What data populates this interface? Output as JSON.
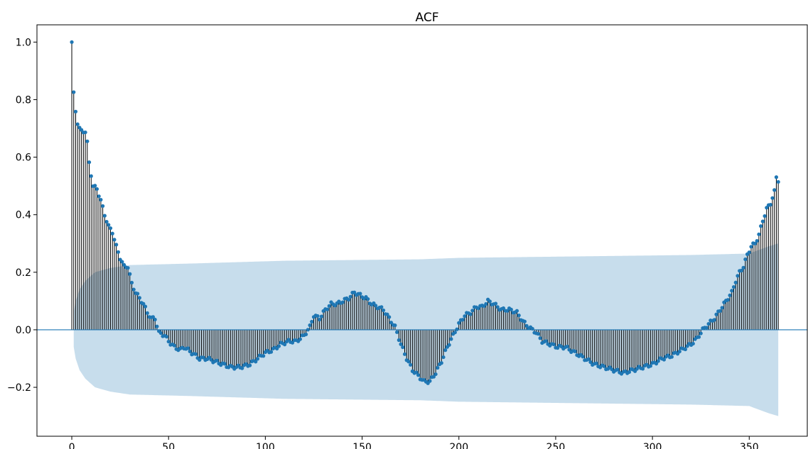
{
  "chart_data": {
    "type": "stem",
    "title": "ACF",
    "xlabel": "",
    "ylabel": "",
    "xlim": [
      -18,
      380
    ],
    "ylim": [
      -0.37,
      1.06
    ],
    "x_ticks": [
      0,
      50,
      100,
      150,
      200,
      250,
      300,
      350
    ],
    "x_tick_labels": [
      "0",
      "50",
      "100",
      "150",
      "200",
      "250",
      "300",
      "350"
    ],
    "y_ticks": [
      -0.2,
      0.0,
      0.2,
      0.4,
      0.6,
      0.8,
      1.0
    ],
    "y_tick_labels": [
      "−0.2",
      "0.0",
      "0.2",
      "0.4",
      "0.6",
      "0.8",
      "1.0"
    ],
    "grid": false,
    "colors": {
      "marker": "#1f77b4",
      "stem": "#000000",
      "baseline": "#1f77b4",
      "confidence_band": "#1f77b4",
      "confidence_alpha": 0.25
    },
    "lags": [
      0,
      365
    ],
    "acf_knots": [
      [
        0,
        1.0
      ],
      [
        1,
        0.82
      ],
      [
        2,
        0.76
      ],
      [
        3,
        0.72
      ],
      [
        4,
        0.7
      ],
      [
        5,
        0.69
      ],
      [
        7,
        0.69
      ],
      [
        8,
        0.65
      ],
      [
        9,
        0.58
      ],
      [
        10,
        0.54
      ],
      [
        11,
        0.5
      ],
      [
        13,
        0.49
      ],
      [
        15,
        0.45
      ],
      [
        17,
        0.4
      ],
      [
        19,
        0.36
      ],
      [
        21,
        0.34
      ],
      [
        23,
        0.29
      ],
      [
        25,
        0.25
      ],
      [
        27,
        0.22
      ],
      [
        29,
        0.22
      ],
      [
        30,
        0.19
      ],
      [
        31,
        0.16
      ],
      [
        33,
        0.13
      ],
      [
        35,
        0.11
      ],
      [
        37,
        0.09
      ],
      [
        39,
        0.06
      ],
      [
        41,
        0.04
      ],
      [
        43,
        0.04
      ],
      [
        45,
        -0.01
      ],
      [
        48,
        -0.02
      ],
      [
        50,
        -0.04
      ],
      [
        53,
        -0.06
      ],
      [
        56,
        -0.07
      ],
      [
        58,
        -0.06
      ],
      [
        62,
        -0.08
      ],
      [
        66,
        -0.1
      ],
      [
        70,
        -0.1
      ],
      [
        74,
        -0.11
      ],
      [
        78,
        -0.12
      ],
      [
        82,
        -0.13
      ],
      [
        87,
        -0.13
      ],
      [
        92,
        -0.12
      ],
      [
        96,
        -0.1
      ],
      [
        100,
        -0.08
      ],
      [
        104,
        -0.07
      ],
      [
        108,
        -0.05
      ],
      [
        112,
        -0.04
      ],
      [
        116,
        -0.04
      ],
      [
        120,
        -0.02
      ],
      [
        123,
        0.01
      ],
      [
        125,
        0.05
      ],
      [
        128,
        0.04
      ],
      [
        131,
        0.07
      ],
      [
        134,
        0.09
      ],
      [
        137,
        0.09
      ],
      [
        140,
        0.1
      ],
      [
        143,
        0.11
      ],
      [
        146,
        0.13
      ],
      [
        149,
        0.12
      ],
      [
        152,
        0.11
      ],
      [
        155,
        0.09
      ],
      [
        158,
        0.08
      ],
      [
        161,
        0.07
      ],
      [
        164,
        0.04
      ],
      [
        167,
        0.01
      ],
      [
        170,
        -0.05
      ],
      [
        173,
        -0.1
      ],
      [
        176,
        -0.14
      ],
      [
        179,
        -0.16
      ],
      [
        182,
        -0.18
      ],
      [
        185,
        -0.18
      ],
      [
        188,
        -0.15
      ],
      [
        191,
        -0.11
      ],
      [
        194,
        -0.06
      ],
      [
        197,
        -0.02
      ],
      [
        200,
        0.02
      ],
      [
        203,
        0.05
      ],
      [
        206,
        0.06
      ],
      [
        209,
        0.08
      ],
      [
        212,
        0.08
      ],
      [
        215,
        0.1
      ],
      [
        218,
        0.09
      ],
      [
        222,
        0.07
      ],
      [
        226,
        0.07
      ],
      [
        230,
        0.06
      ],
      [
        233,
        0.03
      ],
      [
        236,
        0.01
      ],
      [
        240,
        -0.01
      ],
      [
        243,
        -0.04
      ],
      [
        247,
        -0.05
      ],
      [
        251,
        -0.06
      ],
      [
        255,
        -0.06
      ],
      [
        260,
        -0.08
      ],
      [
        265,
        -0.1
      ],
      [
        270,
        -0.12
      ],
      [
        275,
        -0.13
      ],
      [
        280,
        -0.14
      ],
      [
        285,
        -0.15
      ],
      [
        290,
        -0.14
      ],
      [
        295,
        -0.13
      ],
      [
        300,
        -0.12
      ],
      [
        305,
        -0.1
      ],
      [
        310,
        -0.09
      ],
      [
        315,
        -0.07
      ],
      [
        320,
        -0.05
      ],
      [
        323,
        -0.03
      ],
      [
        326,
        0.0
      ],
      [
        329,
        0.02
      ],
      [
        332,
        0.04
      ],
      [
        335,
        0.07
      ],
      [
        338,
        0.1
      ],
      [
        341,
        0.13
      ],
      [
        343,
        0.17
      ],
      [
        345,
        0.2
      ],
      [
        347,
        0.22
      ],
      [
        349,
        0.26
      ],
      [
        351,
        0.29
      ],
      [
        353,
        0.3
      ],
      [
        355,
        0.33
      ],
      [
        357,
        0.38
      ],
      [
        359,
        0.42
      ],
      [
        361,
        0.44
      ],
      [
        363,
        0.48
      ],
      [
        364,
        0.53
      ],
      [
        365,
        0.52
      ]
    ],
    "conf_upper_knots": [
      [
        1,
        0.06
      ],
      [
        2,
        0.1
      ],
      [
        4,
        0.14
      ],
      [
        7,
        0.17
      ],
      [
        12,
        0.2
      ],
      [
        20,
        0.215
      ],
      [
        30,
        0.225
      ],
      [
        60,
        0.23
      ],
      [
        110,
        0.24
      ],
      [
        180,
        0.245
      ],
      [
        200,
        0.25
      ],
      [
        260,
        0.255
      ],
      [
        320,
        0.26
      ],
      [
        350,
        0.265
      ],
      [
        356,
        0.28
      ],
      [
        360,
        0.29
      ],
      [
        365,
        0.3
      ]
    ],
    "conf_lower_knots": [
      [
        1,
        -0.06
      ],
      [
        2,
        -0.1
      ],
      [
        4,
        -0.14
      ],
      [
        7,
        -0.17
      ],
      [
        12,
        -0.2
      ],
      [
        20,
        -0.215
      ],
      [
        30,
        -0.225
      ],
      [
        60,
        -0.23
      ],
      [
        110,
        -0.24
      ],
      [
        180,
        -0.245
      ],
      [
        200,
        -0.25
      ],
      [
        260,
        -0.255
      ],
      [
        320,
        -0.26
      ],
      [
        350,
        -0.265
      ],
      [
        356,
        -0.28
      ],
      [
        360,
        -0.29
      ],
      [
        365,
        -0.3
      ]
    ]
  }
}
